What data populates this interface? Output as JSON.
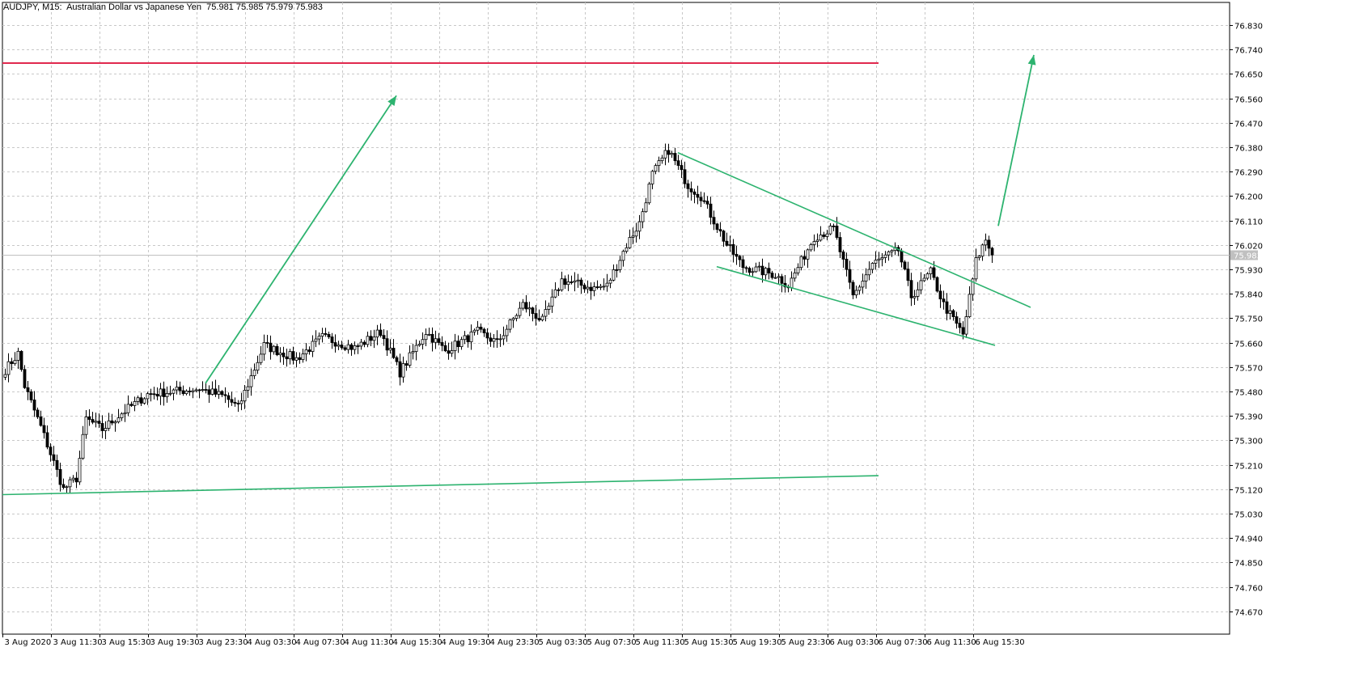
{
  "header": {
    "symbol": "AUDJPY",
    "timeframe": "M15",
    "description": "Australian Dollar vs Japanese Yen",
    "ohlc": "75.981 75.985 75.979 75.983"
  },
  "chart_data": {
    "type": "candlestick",
    "title": "AUDJPY, M15: Australian Dollar vs Japanese Yen",
    "grid": true,
    "y_ticks": [
      "76.830",
      "76.740",
      "76.650",
      "76.560",
      "76.470",
      "76.380",
      "76.290",
      "76.200",
      "76.110",
      "76.020",
      "75.930",
      "75.840",
      "75.750",
      "75.660",
      "75.570",
      "75.480",
      "75.390",
      "75.300",
      "75.210",
      "75.120",
      "75.030",
      "74.940",
      "74.850",
      "74.760",
      "74.670"
    ],
    "x_ticks": [
      "3 Aug 2020",
      "3 Aug 11:30",
      "3 Aug 15:30",
      "3 Aug 19:30",
      "3 Aug 23:30",
      "4 Aug 03:30",
      "4 Aug 07:30",
      "4 Aug 11:30",
      "4 Aug 15:30",
      "4 Aug 19:30",
      "4 Aug 23:30",
      "5 Aug 03:30",
      "5 Aug 07:30",
      "5 Aug 11:30",
      "5 Aug 15:30",
      "5 Aug 19:30",
      "5 Aug 23:30",
      "6 Aug 03:30",
      "6 Aug 07:30",
      "6 Aug 11:30",
      "6 Aug 15:30"
    ],
    "ylim": [
      74.6,
      76.9
    ],
    "current_price": "75.983",
    "bar_count": 306,
    "close_path": [
      [
        0,
        75.56
      ],
      [
        4,
        75.62
      ],
      [
        6,
        75.5
      ],
      [
        11,
        75.35
      ],
      [
        18,
        75.12
      ],
      [
        22,
        75.16
      ],
      [
        25,
        75.38
      ],
      [
        30,
        75.34
      ],
      [
        36,
        75.4
      ],
      [
        44,
        75.47
      ],
      [
        60,
        75.49
      ],
      [
        68,
        75.46
      ],
      [
        72,
        75.42
      ],
      [
        80,
        75.65
      ],
      [
        90,
        75.6
      ],
      [
        98,
        75.68
      ],
      [
        108,
        75.64
      ],
      [
        116,
        75.7
      ],
      [
        122,
        75.55
      ],
      [
        130,
        75.7
      ],
      [
        136,
        75.63
      ],
      [
        146,
        75.7
      ],
      [
        152,
        75.66
      ],
      [
        160,
        75.8
      ],
      [
        166,
        75.74
      ],
      [
        172,
        75.89
      ],
      [
        182,
        75.86
      ],
      [
        186,
        75.87
      ],
      [
        192,
        76.02
      ],
      [
        196,
        76.1
      ],
      [
        200,
        76.28
      ],
      [
        205,
        76.37
      ],
      [
        211,
        76.24
      ],
      [
        215,
        76.2
      ],
      [
        223,
        76.02
      ],
      [
        228,
        75.94
      ],
      [
        238,
        75.91
      ],
      [
        242,
        75.87
      ],
      [
        250,
        76.05
      ],
      [
        256,
        76.08
      ],
      [
        262,
        75.83
      ],
      [
        268,
        75.95
      ],
      [
        276,
        76.0
      ],
      [
        280,
        75.83
      ],
      [
        286,
        75.92
      ],
      [
        290,
        75.8
      ],
      [
        296,
        75.69
      ],
      [
        300,
        75.96
      ],
      [
        303,
        76.04
      ],
      [
        305,
        75.983
      ]
    ],
    "annotations": {
      "resistance_level": {
        "price": 76.69,
        "color": "#e0294e"
      },
      "support_line": {
        "from": [
          0,
          75.1
        ],
        "to": [
          270,
          75.17
        ],
        "color": "#2db36f"
      },
      "channel_upper": {
        "from": [
          208,
          76.36
        ],
        "to": [
          317,
          75.79
        ],
        "color": "#2db36f"
      },
      "channel_lower": {
        "from": [
          220,
          75.94
        ],
        "to": [
          306,
          75.65
        ],
        "color": "#2db36f"
      },
      "arrow_1": {
        "from": [
          62,
          75.51
        ],
        "to": [
          121,
          76.57
        ],
        "color": "#2db36f"
      },
      "arrow_2": {
        "from": [
          307,
          76.09
        ],
        "to": [
          318,
          76.72
        ],
        "color": "#2db36f"
      }
    },
    "colors": {
      "bull": "#ffffff",
      "bear": "#000000",
      "outline": "#000000",
      "grid": "#c8c8c8"
    }
  }
}
